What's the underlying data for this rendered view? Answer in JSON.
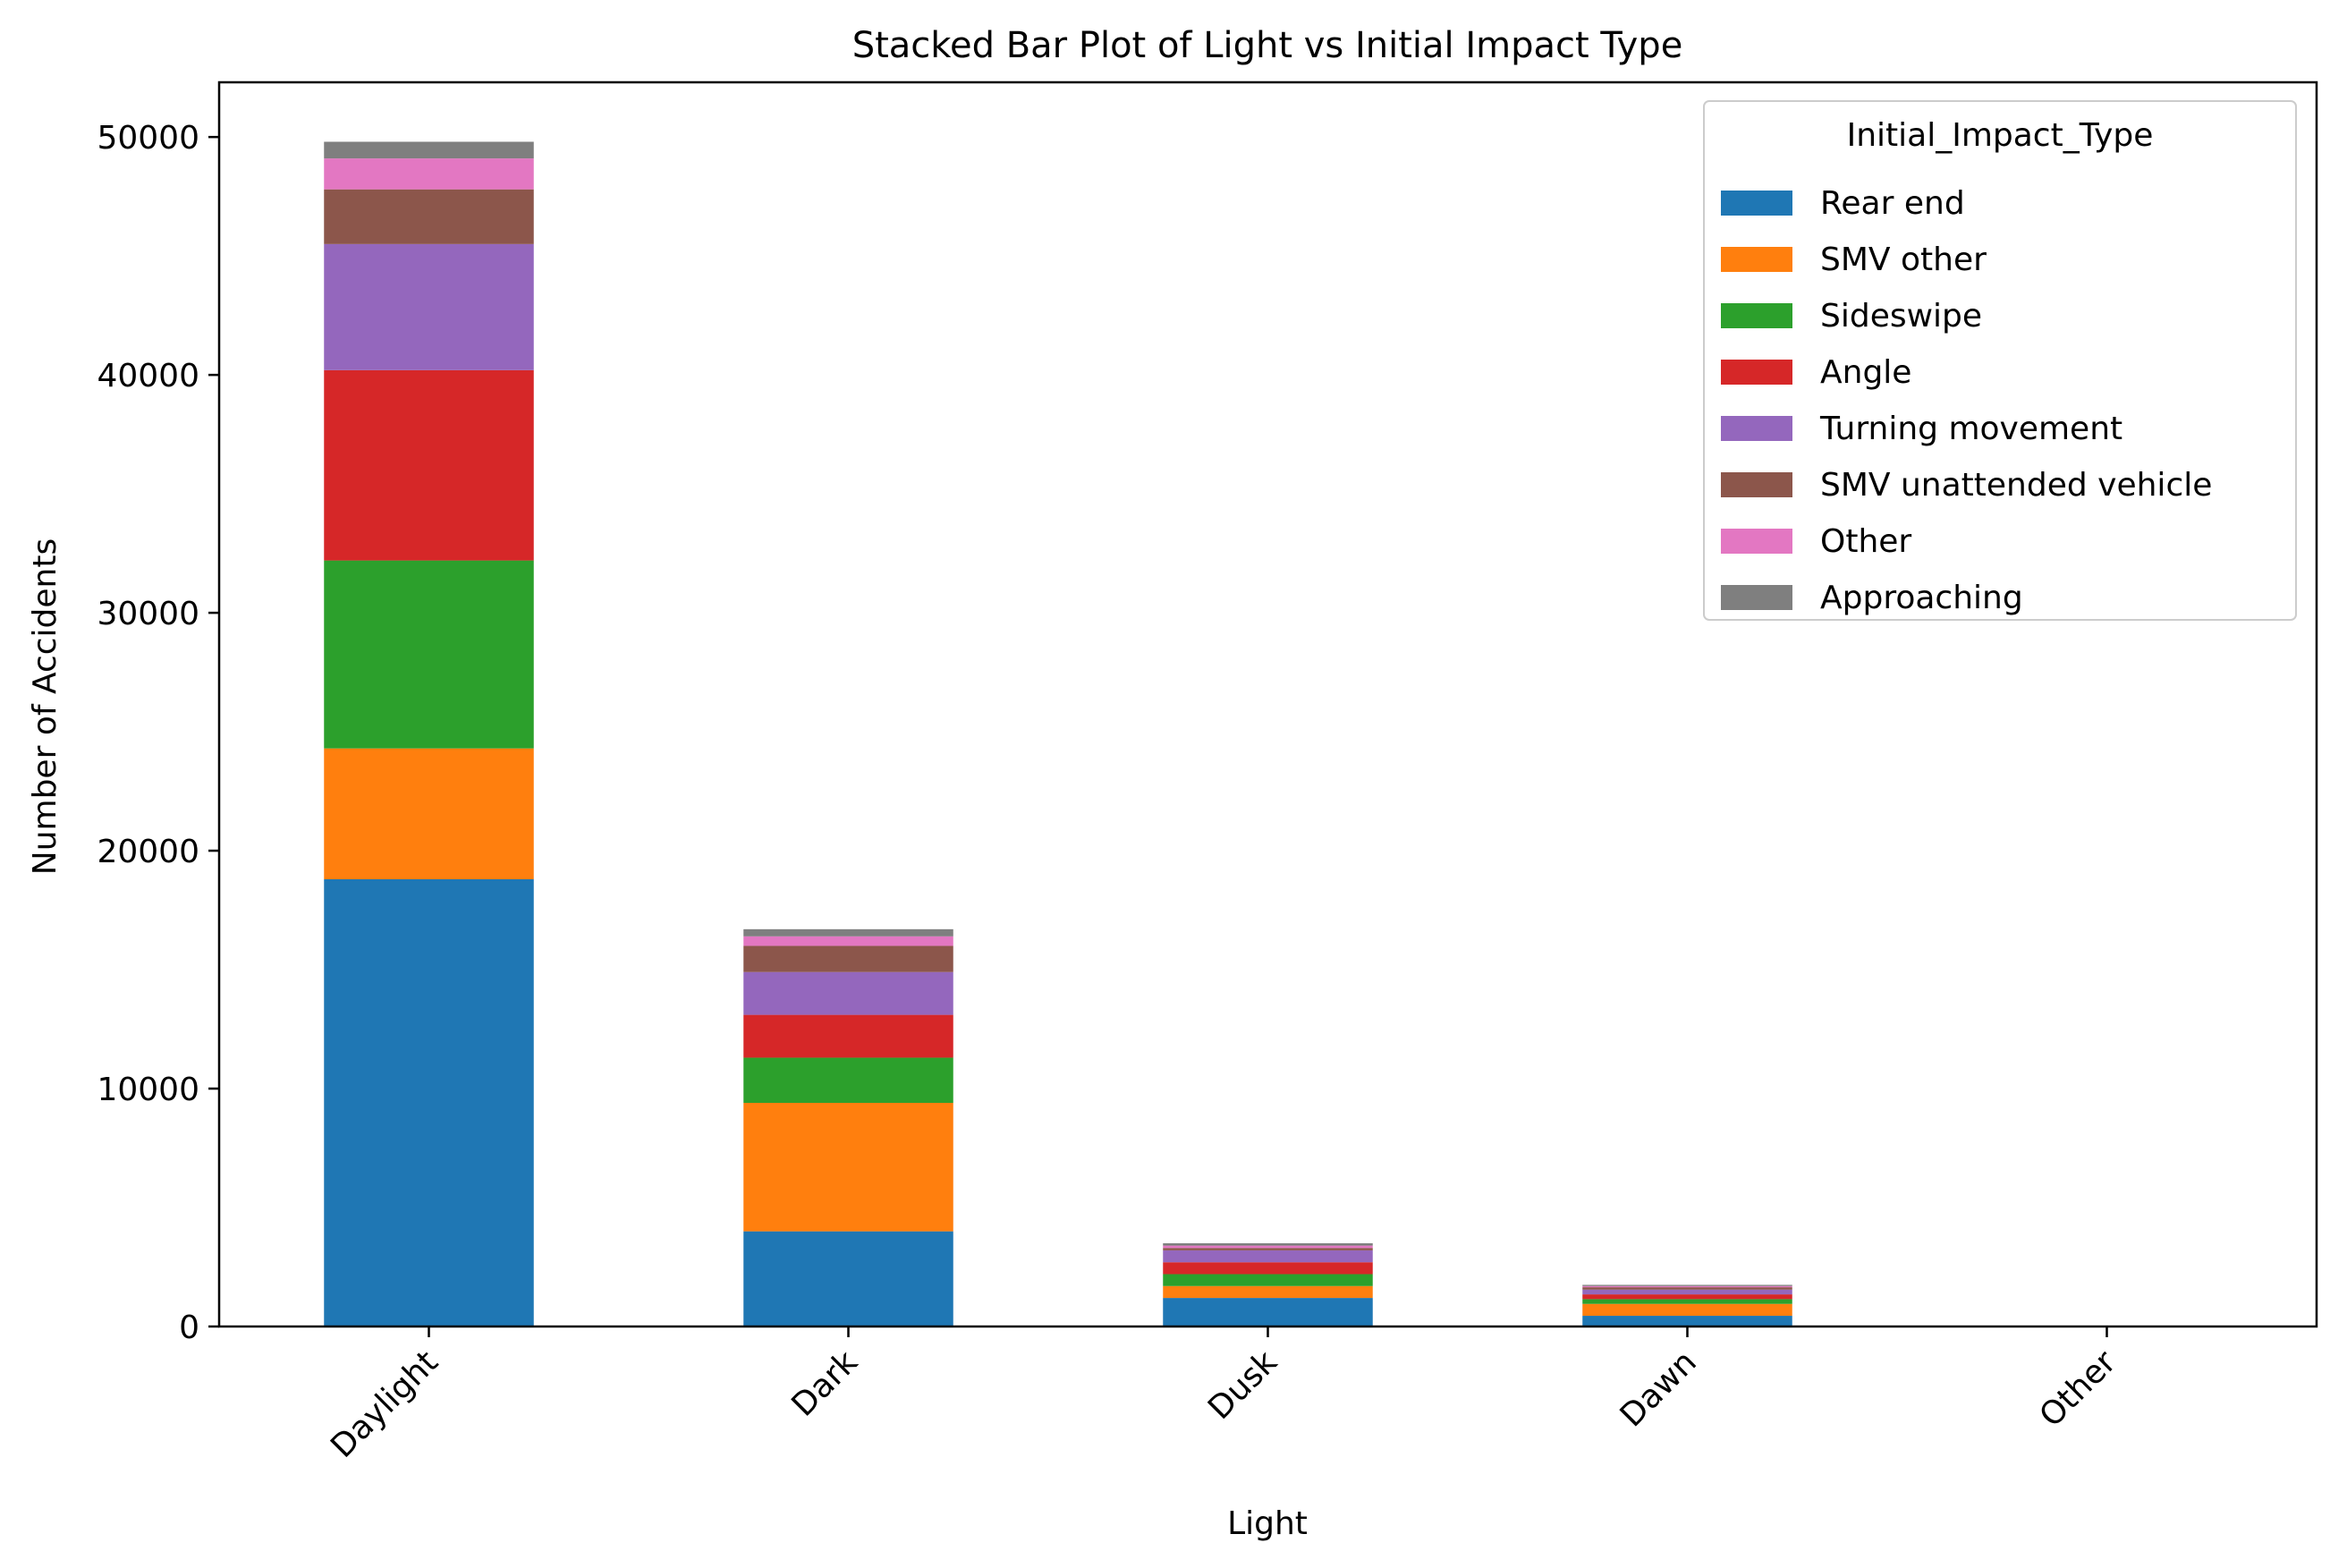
{
  "chart_data": {
    "type": "bar",
    "stacked": true,
    "title": "Stacked Bar Plot of Light vs Initial Impact Type",
    "xlabel": "Light",
    "ylabel": "Number of Accidents",
    "ylim": [
      0,
      52300
    ],
    "yticks": [
      0,
      10000,
      20000,
      30000,
      40000,
      50000
    ],
    "grid": false,
    "legend": {
      "title": "Initial_Impact_Type",
      "placement": "top-right"
    },
    "categories": [
      "Daylight",
      "Dark",
      "Dusk",
      "Dawn",
      "Other"
    ],
    "series": [
      {
        "name": "Rear end",
        "color": "#1f77b4",
        "values": [
          18800,
          4000,
          1200,
          450,
          5
        ]
      },
      {
        "name": "SMV other",
        "color": "#ff7f0e",
        "values": [
          5500,
          5400,
          500,
          500,
          3
        ]
      },
      {
        "name": "Sideswipe",
        "color": "#2ca02c",
        "values": [
          7900,
          1900,
          500,
          200,
          2
        ]
      },
      {
        "name": "Angle",
        "color": "#d62728",
        "values": [
          8000,
          1800,
          500,
          200,
          2
        ]
      },
      {
        "name": "Turning movement",
        "color": "#9467bd",
        "values": [
          5300,
          1800,
          500,
          200,
          2
        ]
      },
      {
        "name": "SMV unattended vehicle",
        "color": "#8c564b",
        "values": [
          2300,
          1100,
          100,
          100,
          1
        ]
      },
      {
        "name": "Other",
        "color": "#e377c2",
        "values": [
          1300,
          400,
          100,
          50,
          1
        ]
      },
      {
        "name": "Approaching",
        "color": "#7f7f7f",
        "values": [
          700,
          300,
          100,
          50,
          1
        ]
      }
    ]
  }
}
